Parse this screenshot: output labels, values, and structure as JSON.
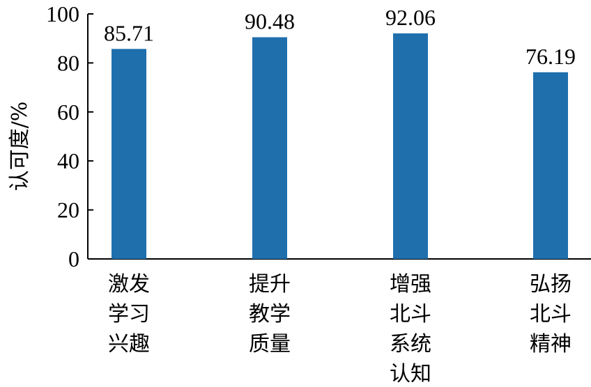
{
  "chart_data": {
    "type": "bar",
    "categories": [
      [
        "激发",
        "学习",
        "兴趣"
      ],
      [
        "提升",
        "教学",
        "质量"
      ],
      [
        "增强",
        "北斗",
        "系统",
        "认知"
      ],
      [
        "弘扬",
        "北斗",
        "精神"
      ]
    ],
    "values": [
      85.71,
      90.48,
      92.06,
      76.19
    ],
    "value_labels": [
      "85.71",
      "90.48",
      "92.06",
      "76.19"
    ],
    "ylabel": "认可度/%",
    "ylim": [
      0,
      100
    ],
    "yticks": [
      0,
      20,
      40,
      60,
      80,
      100
    ],
    "bar_color": "#1f6fad",
    "grid": false,
    "legend": "none"
  }
}
